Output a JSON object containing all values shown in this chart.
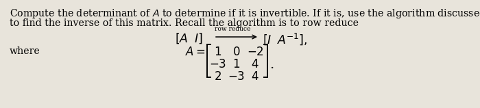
{
  "background_color": "#e8e4db",
  "main_text_line1": "Compute the determinant of $A$ to determine if it is invertible. If it is, use the algorithm discussed in class",
  "main_text_line2": "to find the inverse of this matrix. Recall the algorithm is to row reduce",
  "where_text": "where",
  "matrix_rows": [
    [
      "1",
      "0",
      "-2"
    ],
    [
      "-3",
      "1",
      "4"
    ],
    [
      "2",
      "-3",
      "4"
    ]
  ],
  "text_fontsize": 10.2,
  "formula_fontsize": 12.5,
  "matrix_fontsize": 12.0
}
